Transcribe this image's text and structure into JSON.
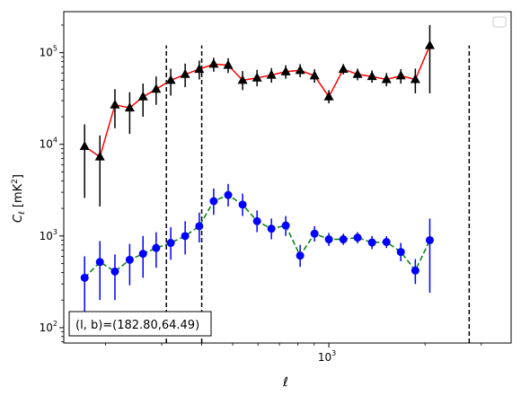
{
  "chart_data": {
    "type": "line",
    "title": "",
    "xlabel": "ℓ",
    "ylabel_main": "C",
    "ylabel_sub": "ℓ",
    "ylabel_unit_open": "  [mK",
    "ylabel_unit_sup": "2",
    "ylabel_unit_close": "]",
    "xscale": "log",
    "yscale": "log",
    "xlim": [
      148,
      3720
    ],
    "ylim": [
      68,
      280000
    ],
    "x_major_ticks": [
      {
        "value": 1000,
        "base": "10",
        "exp": "3"
      }
    ],
    "y_major_ticks": [
      {
        "value": 100,
        "base": "10",
        "exp": "2"
      },
      {
        "value": 1000,
        "base": "10",
        "exp": "3"
      },
      {
        "value": 10000,
        "base": "10",
        "exp": "4"
      },
      {
        "value": 100000,
        "base": "10",
        "exp": "5"
      }
    ],
    "vlines": [
      {
        "x": 310,
        "ymin": 68,
        "ymax": 120000
      },
      {
        "x": 400,
        "ymin": 68,
        "ymax": 120000
      },
      {
        "x": 2750,
        "ymin": 68,
        "ymax": 120000
      }
    ],
    "series": [
      {
        "color": "#ff0000",
        "marker": "triangle",
        "marker_color": "#000000",
        "errbar_color": "#000000",
        "linestyle": "solid",
        "points": [
          {
            "x": 172,
            "y": 9500,
            "lo": 2600,
            "hi": 16500
          },
          {
            "x": 192,
            "y": 7300,
            "lo": 2100,
            "hi": 12500
          },
          {
            "x": 214,
            "y": 27000,
            "lo": 15000,
            "hi": 40000
          },
          {
            "x": 238,
            "y": 25000,
            "lo": 13000,
            "hi": 37000
          },
          {
            "x": 262,
            "y": 33000,
            "lo": 20000,
            "hi": 46000
          },
          {
            "x": 288,
            "y": 40000,
            "lo": 27000,
            "hi": 55000
          },
          {
            "x": 320,
            "y": 50000,
            "lo": 34000,
            "hi": 67000
          },
          {
            "x": 355,
            "y": 58000,
            "lo": 42000,
            "hi": 76000
          },
          {
            "x": 393,
            "y": 66000,
            "lo": 51000,
            "hi": 82000
          },
          {
            "x": 436,
            "y": 75000,
            "lo": 62000,
            "hi": 88000
          },
          {
            "x": 484,
            "y": 73000,
            "lo": 60000,
            "hi": 87000
          },
          {
            "x": 537,
            "y": 50000,
            "lo": 39000,
            "hi": 63000
          },
          {
            "x": 596,
            "y": 53000,
            "lo": 43000,
            "hi": 65000
          },
          {
            "x": 661,
            "y": 57000,
            "lo": 47000,
            "hi": 68000
          },
          {
            "x": 733,
            "y": 62000,
            "lo": 52000,
            "hi": 73000
          },
          {
            "x": 813,
            "y": 64000,
            "lo": 54000,
            "hi": 75000
          },
          {
            "x": 902,
            "y": 56000,
            "lo": 47000,
            "hi": 66000
          },
          {
            "x": 1000,
            "y": 33000,
            "lo": 28000,
            "hi": 39000
          },
          {
            "x": 1110,
            "y": 66000,
            "lo": 58000,
            "hi": 75000
          },
          {
            "x": 1230,
            "y": 58000,
            "lo": 50000,
            "hi": 67000
          },
          {
            "x": 1365,
            "y": 55000,
            "lo": 47000,
            "hi": 64000
          },
          {
            "x": 1515,
            "y": 51000,
            "lo": 43000,
            "hi": 60000
          },
          {
            "x": 1680,
            "y": 56000,
            "lo": 46000,
            "hi": 66000
          },
          {
            "x": 1865,
            "y": 51000,
            "lo": 36000,
            "hi": 67000
          },
          {
            "x": 2070,
            "y": 120000,
            "lo": 36000,
            "hi": 200000
          }
        ]
      },
      {
        "color": "#008000",
        "marker": "circle",
        "marker_color": "#0000ff",
        "errbar_color": "#0000ff",
        "linestyle": "dashed",
        "points": [
          {
            "x": 172,
            "y": 350,
            "lo": 100,
            "hi": 600
          },
          {
            "x": 192,
            "y": 520,
            "lo": 200,
            "hi": 880
          },
          {
            "x": 214,
            "y": 410,
            "lo": 200,
            "hi": 630
          },
          {
            "x": 238,
            "y": 550,
            "lo": 290,
            "hi": 820
          },
          {
            "x": 262,
            "y": 640,
            "lo": 350,
            "hi": 1000
          },
          {
            "x": 288,
            "y": 740,
            "lo": 450,
            "hi": 1100
          },
          {
            "x": 320,
            "y": 840,
            "lo": 550,
            "hi": 1250
          },
          {
            "x": 355,
            "y": 1000,
            "lo": 630,
            "hi": 1450
          },
          {
            "x": 393,
            "y": 1280,
            "lo": 850,
            "hi": 1800
          },
          {
            "x": 436,
            "y": 2400,
            "lo": 1700,
            "hi": 3300
          },
          {
            "x": 484,
            "y": 2800,
            "lo": 2100,
            "hi": 3700
          },
          {
            "x": 537,
            "y": 2200,
            "lo": 1650,
            "hi": 2900
          },
          {
            "x": 596,
            "y": 1450,
            "lo": 1100,
            "hi": 1900
          },
          {
            "x": 661,
            "y": 1200,
            "lo": 920,
            "hi": 1550
          },
          {
            "x": 733,
            "y": 1300,
            "lo": 1000,
            "hi": 1650
          },
          {
            "x": 813,
            "y": 610,
            "lo": 460,
            "hi": 800
          },
          {
            "x": 902,
            "y": 1060,
            "lo": 870,
            "hi": 1280
          },
          {
            "x": 1000,
            "y": 920,
            "lo": 780,
            "hi": 1080
          },
          {
            "x": 1110,
            "y": 920,
            "lo": 800,
            "hi": 1060
          },
          {
            "x": 1230,
            "y": 960,
            "lo": 830,
            "hi": 1100
          },
          {
            "x": 1365,
            "y": 850,
            "lo": 720,
            "hi": 1000
          },
          {
            "x": 1515,
            "y": 860,
            "lo": 740,
            "hi": 1000
          },
          {
            "x": 1680,
            "y": 670,
            "lo": 530,
            "hi": 840
          },
          {
            "x": 1865,
            "y": 420,
            "lo": 300,
            "hi": 560
          },
          {
            "x": 2070,
            "y": 900,
            "lo": 240,
            "hi": 1550
          }
        ]
      }
    ],
    "annotation": "(l, b)=(182.80,64.49)",
    "legend": {
      "position": "top-right",
      "entries": []
    },
    "grid": false
  }
}
